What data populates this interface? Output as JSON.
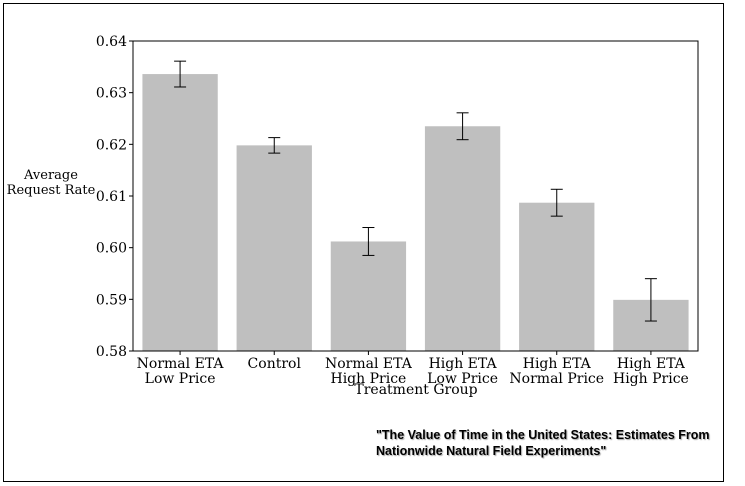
{
  "chart_data": {
    "type": "bar",
    "categories": [
      [
        "Normal ETA",
        "Low Price"
      ],
      [
        "Control"
      ],
      [
        "Normal ETA",
        "High Price"
      ],
      [
        "High ETA",
        "Low Price"
      ],
      [
        "High ETA",
        "Normal Price"
      ],
      [
        "High ETA",
        "High Price"
      ]
    ],
    "values": [
      0.6336,
      0.6198,
      0.6012,
      0.6235,
      0.6087,
      0.5899
    ],
    "error_low": [
      0.6311,
      0.6183,
      0.5985,
      0.6209,
      0.6061,
      0.5858
    ],
    "error_high": [
      0.6361,
      0.6213,
      0.6039,
      0.6261,
      0.6113,
      0.594
    ],
    "ylim": [
      0.58,
      0.64
    ],
    "yticks": [
      "0.58",
      "0.59",
      "0.60",
      "0.61",
      "0.62",
      "0.63",
      "0.64"
    ],
    "ylabel": [
      "Average",
      "Request Rate"
    ],
    "xlabel": "Treatment Group",
    "bar_color": "#bfbfbf",
    "grid": false
  },
  "source_note": {
    "line1": "\"The Value of Time in the United States: Estimates From",
    "line2": "Nationwide Natural Field Experiments\""
  }
}
